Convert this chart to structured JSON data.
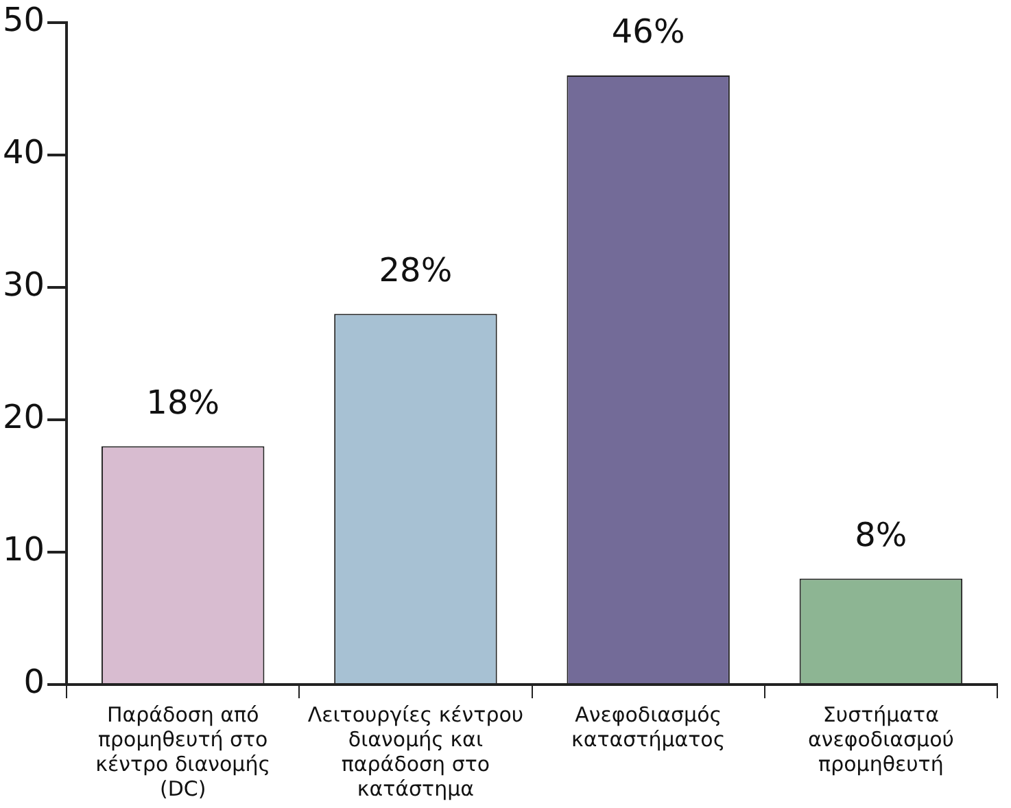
{
  "chart_data": {
    "type": "bar",
    "categories": [
      "Παράδοση από προμηθευτή στο κέντρο διανομής (DC)",
      "Λειτουργίες κέντρου διανομής και παράδοση στο κατάστημα",
      "Ανεφοδιασμός καταστήματος",
      "Συστήματα ανεφοδιασμού προμηθευτή"
    ],
    "values": [
      18,
      28,
      46,
      8
    ],
    "colors": [
      "#d8bcd0",
      "#a7c1d3",
      "#736b98",
      "#8db593"
    ],
    "value_labels": [
      "18%",
      "28%",
      "46%",
      "8%"
    ],
    "ylim": [
      0,
      50
    ],
    "yticks": [
      0,
      10,
      20,
      30,
      40,
      50
    ],
    "grid": false,
    "legend": false
  }
}
